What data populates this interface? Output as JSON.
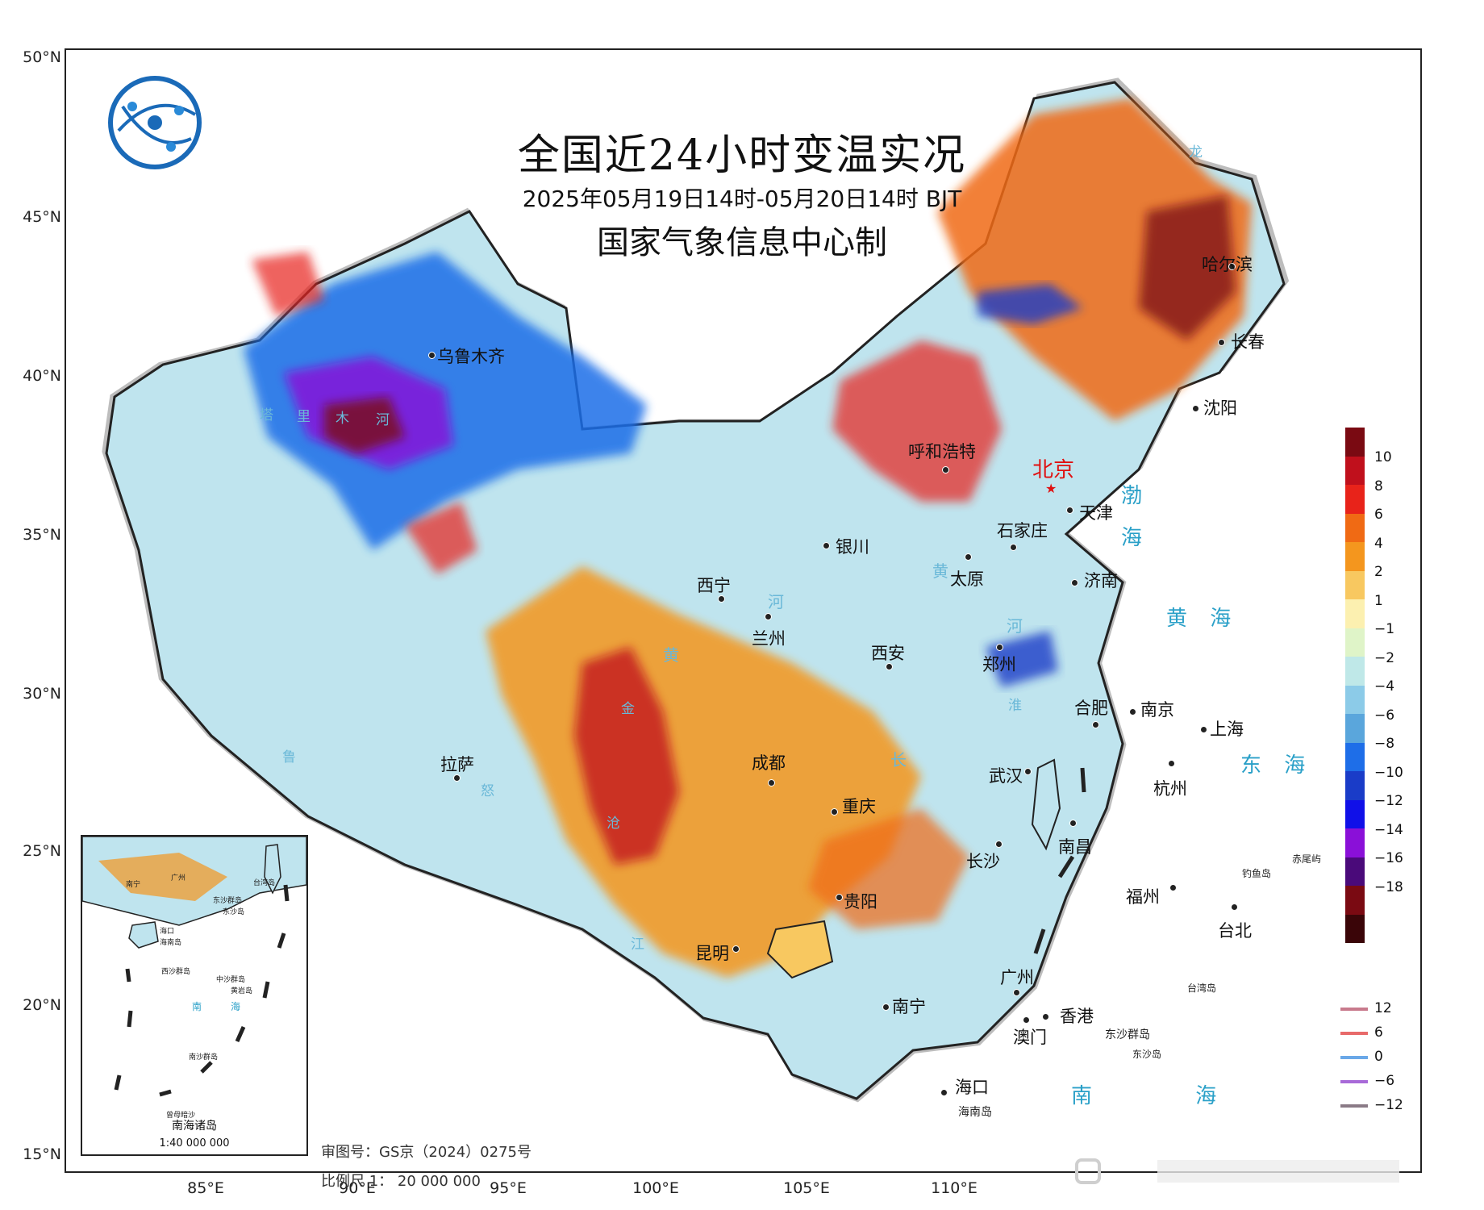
{
  "header": {
    "title": "全国近24小时变温实况",
    "subtitle": "2025年05月19日14时-05月20日14时 BJT",
    "agency": "国家气象信息中心制"
  },
  "axes": {
    "lat_labels": [
      "50°N",
      "45°N",
      "40°N",
      "35°N",
      "30°N",
      "25°N",
      "20°N",
      "15°N"
    ],
    "lon_labels": [
      "85°E",
      "90°E",
      "95°E",
      "100°E",
      "105°E",
      "110°E"
    ]
  },
  "cities": {
    "urumqi": "乌鲁木齐",
    "harbin": "哈尔滨",
    "changchun": "长春",
    "shenyang": "沈阳",
    "hohhot": "呼和浩特",
    "beijing": "北京",
    "tianjin": "天津",
    "shijiazhuang": "石家庄",
    "yinchuan": "银川",
    "taiyuan": "太原",
    "jinan": "济南",
    "xining": "西宁",
    "lanzhou": "兰州",
    "xian": "西安",
    "zhengzhou": "郑州",
    "hefei": "合肥",
    "nanjing": "南京",
    "shanghai": "上海",
    "lhasa": "拉萨",
    "chengdu": "成都",
    "wuhan": "武汉",
    "hangzhou": "杭州",
    "chongqing": "重庆",
    "nanchang": "南昌",
    "changsha": "长沙",
    "guiyang": "贵阳",
    "fuzhou": "福州",
    "taipei": "台北",
    "kunming": "昆明",
    "guangzhou": "广州",
    "nanning": "南宁",
    "hongkong": "香港",
    "macau": "澳门",
    "haikou": "海口"
  },
  "places": {
    "hainan_island": "海南岛",
    "taiwan_island": "台湾岛",
    "dongsha": "东沙群岛",
    "dongsha_dao": "东沙岛",
    "diaoyu": "钓鱼岛",
    "chiwei": "赤尾屿"
  },
  "seas": {
    "bohai_1": "渤",
    "bohai_2": "海",
    "huanghai": "黄 海",
    "donghai": "东 海",
    "nanhai": "南 海"
  },
  "rivers": {
    "ta": "塔",
    "li": "里",
    "mu": "木",
    "he": "河",
    "huang1": "黄",
    "he2": "河",
    "huang2": "黄",
    "he3": "河",
    "huai": "淮",
    "chang": "长",
    "jin": "金",
    "jiang": "江",
    "cang": "沧",
    "nu": "怒",
    "lu": "鲁",
    "long": "龙"
  },
  "legend": {
    "ticks": [
      "10",
      "8",
      "6",
      "4",
      "2",
      "1",
      "−1",
      "−2",
      "−4",
      "−6",
      "−8",
      "−10",
      "−12",
      "−14",
      "−16",
      "−18"
    ],
    "colors": [
      "#7a0a12",
      "#c0101c",
      "#e8231a",
      "#f06a14",
      "#f4961e",
      "#f8c860",
      "#fcf0b0",
      "#dff4c8",
      "#bfe8e8",
      "#8ccbe8",
      "#5aa6dc",
      "#1e6ee8",
      "#1a3cc8",
      "#1010e8",
      "#8a10d8",
      "#4a0a7a",
      "#7a0a12",
      "#3a0508"
    ]
  },
  "contour_legend": [
    {
      "value": "12",
      "color": "#c87a8c"
    },
    {
      "value": "6",
      "color": "#e86a6a"
    },
    {
      "value": "0",
      "color": "#6aa8e8"
    },
    {
      "value": "−6",
      "color": "#a86ad8"
    },
    {
      "value": "−12",
      "color": "#8a7a86"
    }
  ],
  "inset": {
    "title": "南海诸岛",
    "scale": "1:40 000 000",
    "labels": {
      "nanning": "南宁",
      "guangzhou": "广州",
      "taiwan": "台湾岛",
      "dongsha": "东沙群岛",
      "dongshadao": "东沙岛",
      "haikou": "海口",
      "hainan": "海南岛",
      "xisha": "西沙群岛",
      "zhongsha": "中沙群岛",
      "huangyan": "黄岩岛",
      "nan": "南",
      "hai": "海",
      "nansha": "南沙群岛",
      "zengmu": "曾母暗沙"
    }
  },
  "footer": {
    "approval": "审图号：GS京（2024）0275号",
    "scale": "比例尺  1： 20 000 000"
  }
}
